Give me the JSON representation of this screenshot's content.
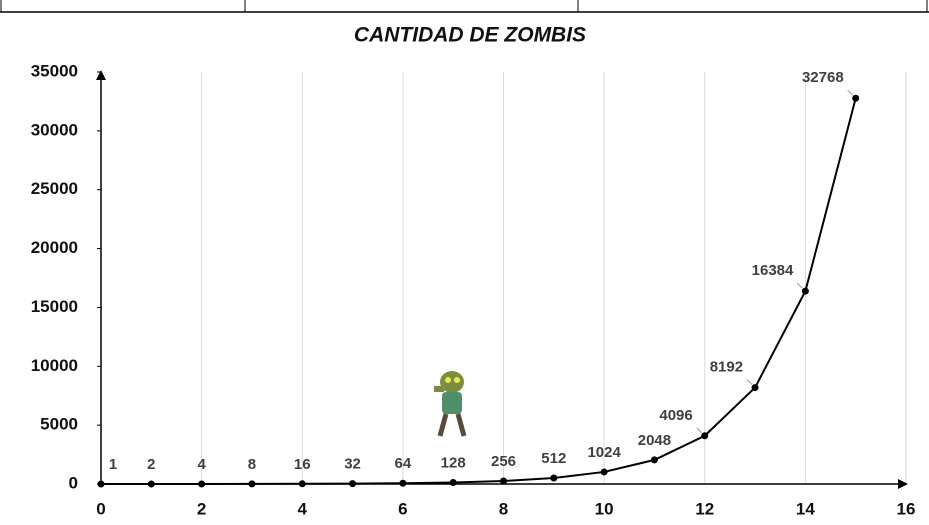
{
  "chart_data": {
    "type": "line",
    "title": "CANTIDAD DE ZOMBIS",
    "x": [
      0,
      1,
      2,
      3,
      4,
      5,
      6,
      7,
      8,
      9,
      10,
      11,
      12,
      13,
      14,
      15
    ],
    "values": [
      1,
      2,
      4,
      8,
      16,
      32,
      64,
      128,
      256,
      512,
      1024,
      2048,
      4096,
      8192,
      16384,
      32768
    ],
    "color": "#000000",
    "xlim": [
      0,
      16
    ],
    "xticks": [
      0,
      2,
      4,
      6,
      8,
      10,
      12,
      14,
      16
    ],
    "ylim": [
      0,
      35000
    ],
    "yticks": [
      0,
      5000,
      10000,
      15000,
      20000,
      25000,
      30000,
      35000
    ],
    "grid": true
  }
}
